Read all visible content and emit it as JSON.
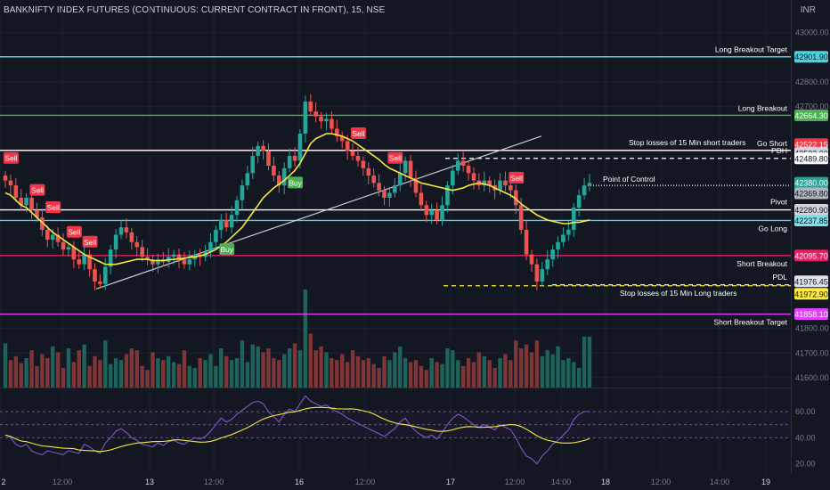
{
  "header": {
    "title": "BANKNIFTY INDEX FUTURES (CONTINUOUS: CURRENT CONTRACT IN FRONT), 15, NSE",
    "currency": "INR"
  },
  "colors": {
    "background": "#131722",
    "up": "#26a69a",
    "down": "#ef5350",
    "sma": "#f5e942",
    "rsi": "#7e57c2",
    "cyan": "#4dd0e1",
    "green": "#4caf50",
    "red": "#f23645",
    "magenta": "#e91e63",
    "white": "#ffffff",
    "yellow": "#ffeb3b",
    "fuchsia": "#e040fb"
  },
  "chart_data": {
    "type": "candlestick",
    "price_axis": {
      "ticks": [
        "43000.00",
        "42800.00",
        "42700.00",
        "41800.00",
        "41700.00",
        "41600.00"
      ],
      "range": [
        41560,
        43060
      ]
    },
    "rsi_axis": {
      "ticks": [
        "60.00",
        "40.00",
        "20.00"
      ],
      "range": [
        15,
        75
      ]
    },
    "time_axis": [
      "2",
      "12:00",
      "13",
      "12:00",
      "16",
      "12:00",
      "17",
      "12:00",
      "14:00",
      "18",
      "12:00",
      "14:00",
      "19"
    ],
    "levels": [
      {
        "price": 42901.9,
        "label": "42901.90",
        "text": "Long Breakout Target",
        "color": "#4dd0e1",
        "style": "solid"
      },
      {
        "price": 42664.3,
        "label": "42664.30",
        "text": "Long Breakout",
        "color": "#4caf50",
        "style": "solid"
      },
      {
        "price": 42522.15,
        "label": "42522.15",
        "text": "",
        "color": "#f23645",
        "style": "solid"
      },
      {
        "price": 42522.0,
        "label": "42522.00",
        "text": "Go Short",
        "color": "#ffffff",
        "style": "solid"
      },
      {
        "price": 42489.8,
        "label": "42489.80",
        "text": "PDH",
        "color": "#ffffff",
        "style": "dashed"
      },
      {
        "price": 42380.0,
        "label": "42380.00",
        "text": "Point of Control",
        "color": "#ffffff",
        "style": "dotted"
      },
      {
        "price": 42369.8,
        "label": "42369.80",
        "text": "",
        "color": "#787b86",
        "style": "none"
      },
      {
        "price": 42280.9,
        "label": "42280.90",
        "text": "Pivot",
        "color": "#ffffff",
        "style": "solid"
      },
      {
        "price": 42237.85,
        "label": "42237.85",
        "text": "Go Long",
        "color": "#4dd0e1",
        "style": "solid"
      },
      {
        "price": 42095.7,
        "label": "42095.70",
        "text": "Short Breakout",
        "color": "#e91e63",
        "style": "solid"
      },
      {
        "price": 41976.45,
        "label": "41976.45",
        "text": "PDL",
        "color": "#ffffff",
        "style": "dashed"
      },
      {
        "price": 41972.9,
        "label": "41972.90",
        "text": "",
        "color": "#ffeb3b",
        "style": "dashed"
      },
      {
        "price": 41858.1,
        "label": "41858.10",
        "text": "Short Breakout Target",
        "color": "#e040fb",
        "style": "solid"
      }
    ],
    "annotations": [
      {
        "text": "Stop losses of 15 Min short traders",
        "price": 42522
      },
      {
        "text": "Stop losses of  15 Min Long traders",
        "price": 41976
      }
    ],
    "signals": [
      {
        "label": "Sell",
        "kind": "sell",
        "index": 1
      },
      {
        "label": "Sell",
        "kind": "sell",
        "index": 6
      },
      {
        "label": "Sell",
        "kind": "sell",
        "index": 9
      },
      {
        "label": "Sell",
        "kind": "sell",
        "index": 13
      },
      {
        "label": "Sell",
        "kind": "sell",
        "index": 16
      },
      {
        "label": "Buy",
        "kind": "buy",
        "index": 42
      },
      {
        "label": "Buy",
        "kind": "buy",
        "index": 55
      },
      {
        "label": "Sell",
        "kind": "sell",
        "index": 67
      },
      {
        "label": "Sell",
        "kind": "sell",
        "index": 74
      },
      {
        "label": "Sell",
        "kind": "sell",
        "index": 97
      }
    ],
    "close": [
      42400,
      42380,
      42330,
      42300,
      42330,
      42280,
      42250,
      42200,
      42160,
      42180,
      42150,
      42120,
      42130,
      42080,
      42060,
      42100,
      42040,
      41990,
      41980,
      42050,
      42120,
      42180,
      42210,
      42190,
      42150,
      42130,
      42090,
      42080,
      42060,
      42080,
      42070,
      42090,
      42100,
      42080,
      42060,
      42080,
      42100,
      42090,
      42110,
      42150,
      42200,
      42240,
      42210,
      42260,
      42320,
      42380,
      42430,
      42500,
      42540,
      42520,
      42460,
      42420,
      42380,
      42450,
      42500,
      42480,
      42590,
      42720,
      42680,
      42660,
      42640,
      42650,
      42610,
      42580,
      42560,
      42520,
      42500,
      42480,
      42450,
      42420,
      42390,
      42360,
      42330,
      42350,
      42380,
      42430,
      42480,
      42410,
      42350,
      42300,
      42260,
      42280,
      42240,
      42300,
      42380,
      42440,
      42480,
      42460,
      42430,
      42400,
      42380,
      42400,
      42380,
      42360,
      42400,
      42380,
      42360,
      42300,
      42200,
      42100,
      42060,
      41990,
      42040,
      42080,
      42120,
      42150,
      42180,
      42200,
      42290,
      42340,
      42380,
      42390
    ],
    "sma20": [
      42350,
      42340,
      42320,
      42300,
      42290,
      42270,
      42250,
      42230,
      42210,
      42190,
      42175,
      42160,
      42145,
      42130,
      42115,
      42100,
      42090,
      42080,
      42070,
      42060,
      42060,
      42060,
      42065,
      42070,
      42075,
      42080,
      42080,
      42080,
      42075,
      42075,
      42075,
      42078,
      42080,
      42082,
      42085,
      42088,
      42090,
      42095,
      42100,
      42110,
      42120,
      42135,
      42150,
      42170,
      42190,
      42210,
      42240,
      42270,
      42300,
      42330,
      42350,
      42370,
      42385,
      42400,
      42420,
      42440,
      42470,
      42510,
      42550,
      42570,
      42580,
      42590,
      42590,
      42585,
      42580,
      42570,
      42560,
      42545,
      42530,
      42515,
      42500,
      42485,
      42465,
      42450,
      42440,
      42430,
      42420,
      42410,
      42400,
      42390,
      42385,
      42380,
      42375,
      42370,
      42365,
      42360,
      42365,
      42370,
      42380,
      42385,
      42390,
      42385,
      42380,
      42370,
      42360,
      42350,
      42340,
      42325,
      42305,
      42290,
      42275,
      42260,
      42250,
      42240,
      42235,
      42230,
      42225,
      42225,
      42230,
      42230,
      42235,
      42240
    ],
    "volume": [
      45,
      28,
      32,
      25,
      30,
      38,
      22,
      34,
      30,
      42,
      36,
      20,
      40,
      26,
      38,
      44,
      22,
      32,
      28,
      48,
      24,
      30,
      28,
      34,
      40,
      38,
      22,
      18,
      36,
      30,
      28,
      32,
      26,
      24,
      38,
      22,
      20,
      30,
      28,
      34,
      22,
      40,
      32,
      28,
      30,
      48,
      26,
      44,
      42,
      36,
      40,
      30,
      28,
      34,
      40,
      45,
      38,
      100,
      55,
      38,
      42,
      36,
      30,
      28,
      34,
      26,
      38,
      32,
      28,
      30,
      24,
      20,
      32,
      28,
      36,
      42,
      30,
      26,
      28,
      22,
      18,
      30,
      26,
      24,
      40,
      38,
      28,
      22,
      30,
      26,
      36,
      32,
      28,
      20,
      30,
      34,
      28,
      48,
      40,
      44,
      36,
      48,
      32,
      38,
      34,
      42,
      28,
      30,
      26,
      20,
      52,
      52
    ],
    "rsi": [
      42,
      40,
      35,
      33,
      35,
      30,
      28,
      27,
      30,
      29,
      28,
      27,
      30,
      29,
      28,
      35,
      33,
      30,
      28,
      36,
      40,
      45,
      47,
      44,
      40,
      38,
      35,
      34,
      33,
      36,
      34,
      37,
      38,
      36,
      35,
      38,
      40,
      39,
      41,
      45,
      50,
      55,
      52,
      54,
      58,
      61,
      64,
      67,
      68,
      66,
      60,
      56,
      52,
      58,
      62,
      60,
      66,
      72,
      68,
      66,
      64,
      65,
      62,
      60,
      58,
      55,
      53,
      51,
      49,
      47,
      45,
      43,
      41,
      44,
      47,
      52,
      55,
      49,
      45,
      42,
      40,
      42,
      39,
      44,
      50,
      55,
      58,
      56,
      53,
      50,
      48,
      50,
      48,
      46,
      50,
      48,
      46,
      40,
      32,
      26,
      24,
      20,
      26,
      30,
      35,
      38,
      42,
      46,
      54,
      58,
      60,
      60
    ]
  }
}
